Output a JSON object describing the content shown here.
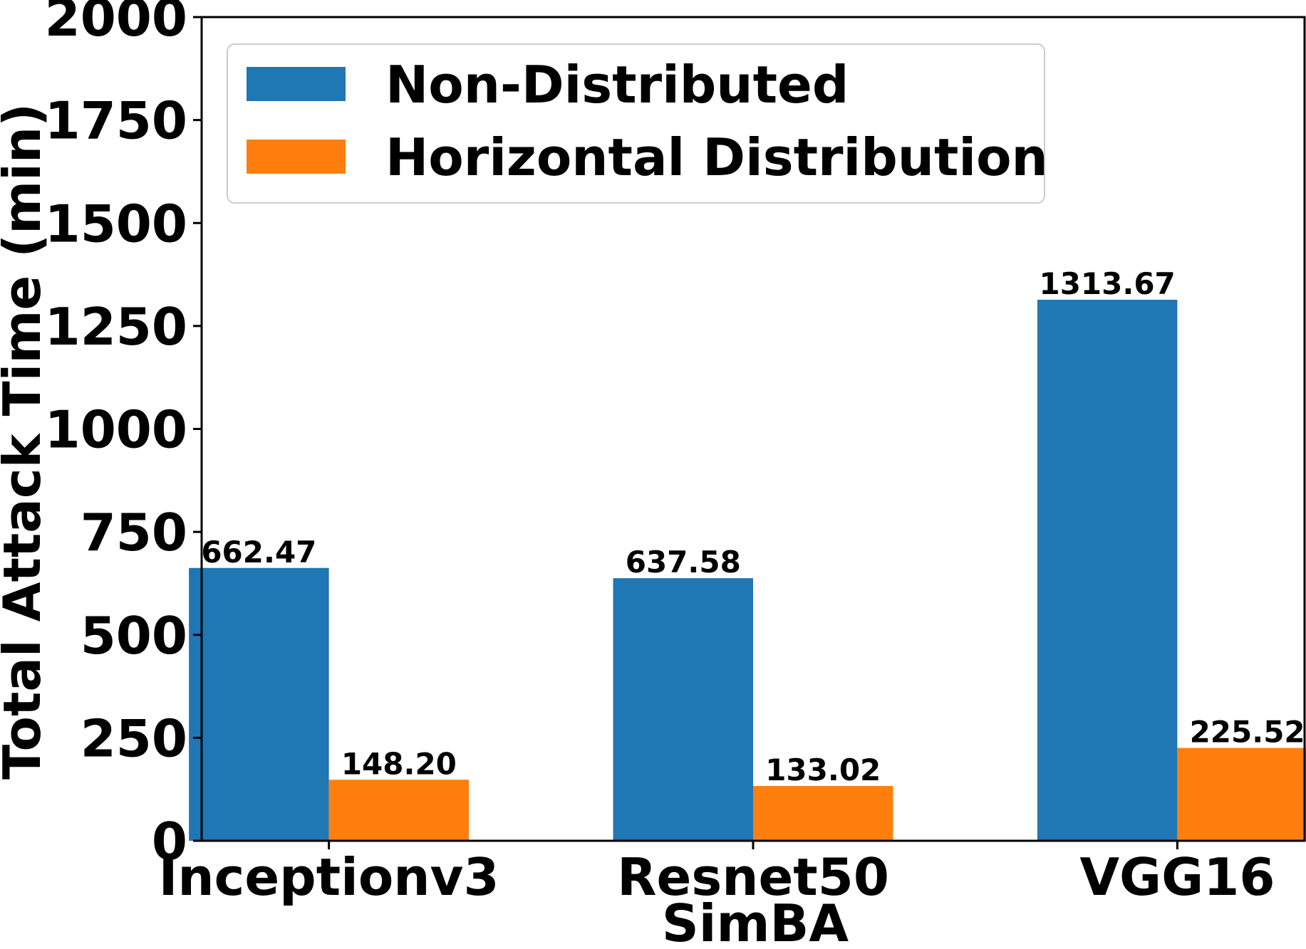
{
  "chart_data": {
    "type": "bar",
    "categories": [
      "Inceptionv3",
      "Resnet50",
      "VGG16"
    ],
    "series": [
      {
        "name": "Non-Distributed",
        "color": "#1f77b4",
        "values": [
          662.47,
          637.58,
          1313.67
        ],
        "labels": [
          "662.47",
          "637.58",
          "1313.67"
        ]
      },
      {
        "name": "Horizontal Distribution",
        "color": "#ff7f0e",
        "values": [
          148.2,
          133.02,
          225.52
        ],
        "labels": [
          "148.20",
          "133.02",
          "225.52"
        ]
      }
    ],
    "xlabel": "SimBA",
    "ylabel": "Total Attack Time (min)",
    "ylim": [
      0,
      2000
    ],
    "yticks": [
      0,
      250,
      500,
      750,
      1000,
      1250,
      1500,
      1750,
      2000
    ],
    "grid": false,
    "legend_position": "top-left"
  }
}
